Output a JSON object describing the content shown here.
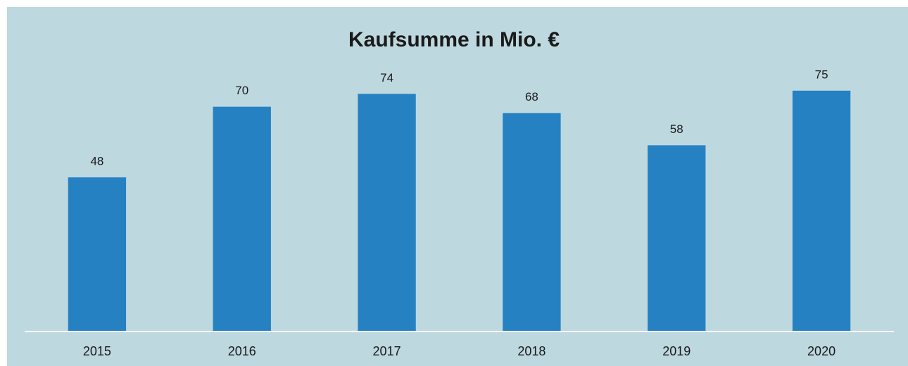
{
  "chart_data": {
    "type": "bar",
    "title": "Kaufsumme in Mio. €",
    "categories": [
      "2015",
      "2016",
      "2017",
      "2018",
      "2019",
      "2020"
    ],
    "values": [
      48,
      70,
      74,
      68,
      58,
      75
    ],
    "color": "#2681c2",
    "ylim": [
      0,
      80
    ]
  }
}
